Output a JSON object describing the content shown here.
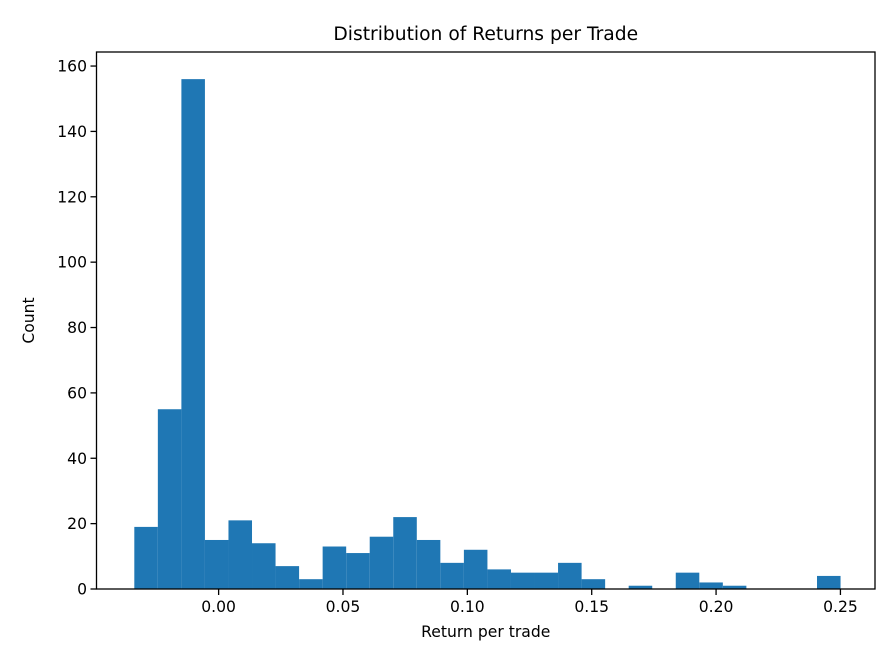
{
  "chart_data": {
    "type": "bar",
    "subtype": "histogram",
    "title": "Distribution of Returns per Trade",
    "xlabel": "Return per trade",
    "ylabel": "Count",
    "bin_start": -0.0339,
    "bin_width": 0.009465,
    "counts": [
      19,
      55,
      156,
      15,
      21,
      14,
      7,
      3,
      13,
      11,
      16,
      22,
      15,
      8,
      12,
      6,
      5,
      5,
      8,
      3,
      0,
      1,
      0,
      5,
      2,
      1,
      0,
      0,
      0,
      4
    ],
    "xlim": [
      -0.0491,
      0.2639
    ],
    "ylim": [
      0,
      164.3
    ],
    "x_ticks": [
      0.0,
      0.05,
      0.1,
      0.15,
      0.2,
      0.25
    ],
    "x_tick_labels": [
      "0.00",
      "0.05",
      "0.10",
      "0.15",
      "0.20",
      "0.25"
    ],
    "y_ticks": [
      0,
      20,
      40,
      60,
      80,
      100,
      120,
      140,
      160
    ],
    "y_tick_labels": [
      "0",
      "20",
      "40",
      "60",
      "80",
      "100",
      "120",
      "140",
      "160"
    ],
    "bar_color": "#1f77b4",
    "axis_color": "#000000",
    "background_color": "#ffffff",
    "grid": false,
    "legend": null
  }
}
